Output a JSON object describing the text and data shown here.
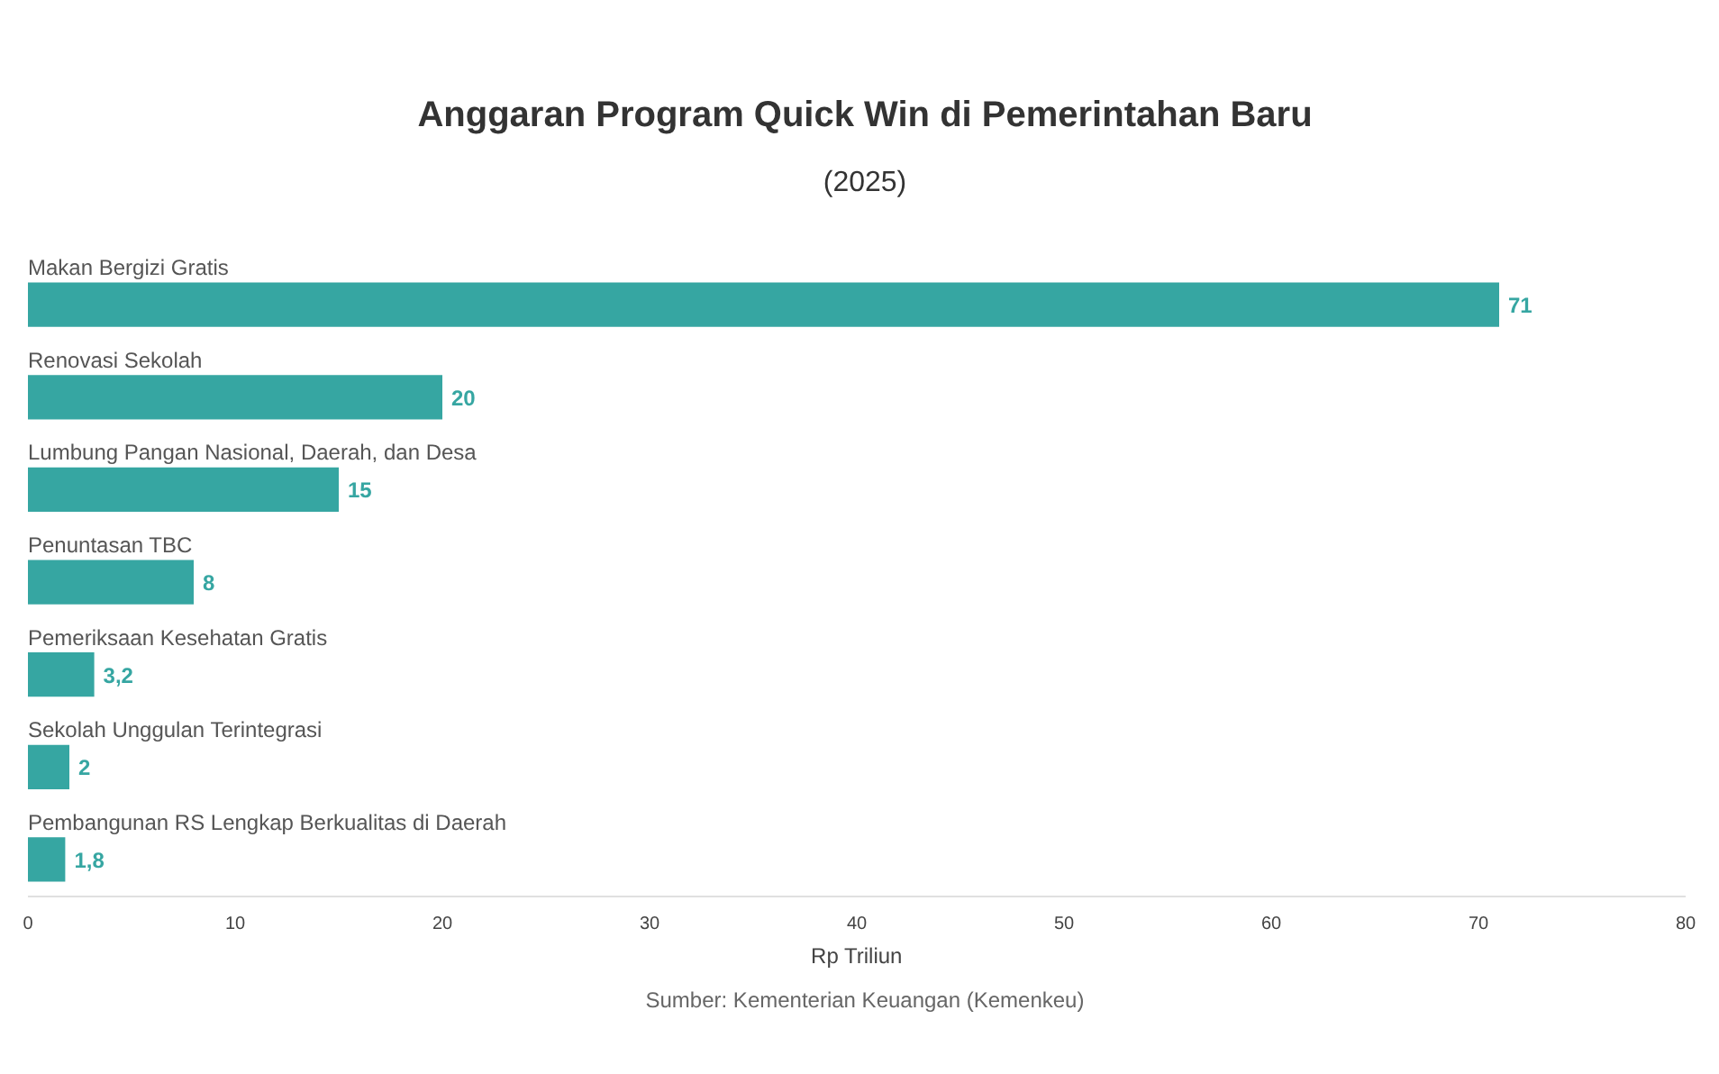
{
  "chart_data": {
    "type": "bar",
    "orientation": "horizontal",
    "title": "Anggaran Program Quick Win di Pemerintahan Baru",
    "subtitle": "(2025)",
    "categories": [
      "Makan Bergizi Gratis",
      "Renovasi Sekolah",
      "Lumbung Pangan Nasional, Daerah, dan Desa",
      "Penuntasan TBC",
      "Pemeriksaan Kesehatan Gratis",
      "Sekolah Unggulan Terintegrasi",
      "Pembangunan RS Lengkap Berkualitas di Daerah"
    ],
    "values": [
      71,
      20,
      15,
      8,
      3.2,
      2,
      1.8
    ],
    "value_labels": [
      "71",
      "20",
      "15",
      "8",
      "3,2",
      "2",
      "1,8"
    ],
    "color": "#36a6a2",
    "xlabel": "Rp Triliun",
    "xlim": [
      0,
      80
    ],
    "xticks": [
      0,
      10,
      20,
      30,
      40,
      50,
      60,
      70,
      80
    ],
    "grid": false,
    "annotations": [
      "Sumber: Kementerian Keuangan (Kemenkeu)"
    ]
  }
}
